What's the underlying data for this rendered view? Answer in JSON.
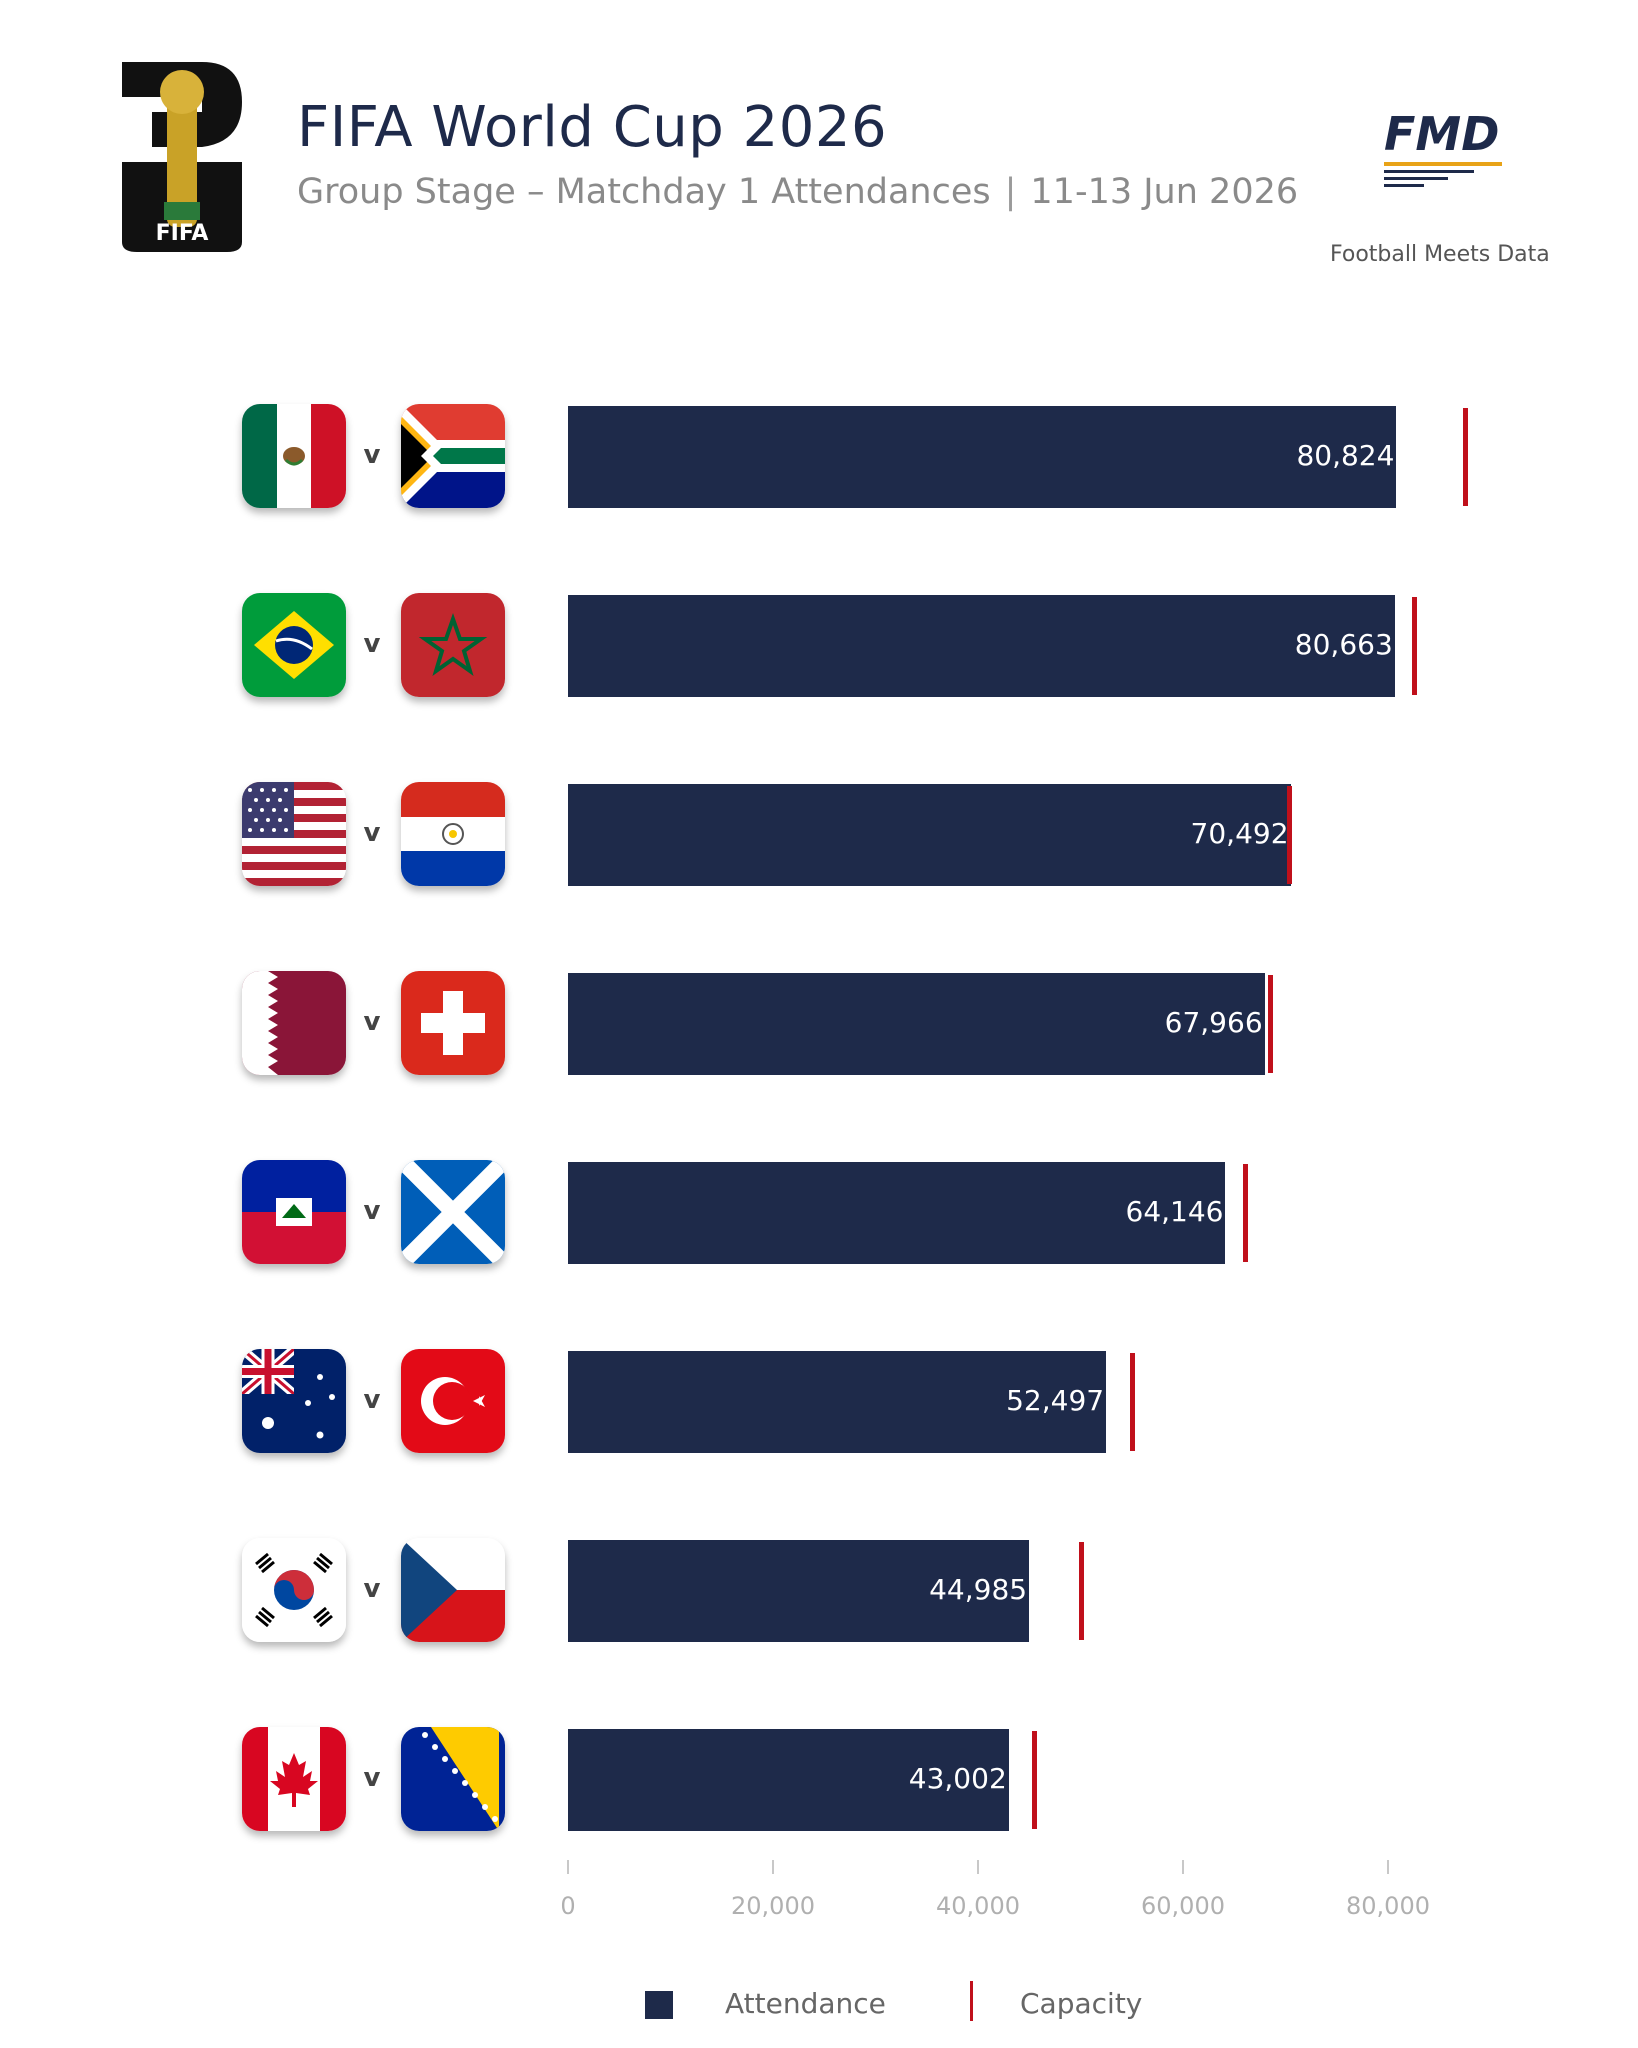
{
  "header": {
    "title": "FIFA World Cup 2026",
    "subtitle_left": "Group Stage – Matchday 1 Attendances",
    "subtitle_sep": "|",
    "subtitle_right": "11-13 Jun 2026",
    "fifa_logo_text": "FIFA",
    "fmd_logo_text": "FMD",
    "fmd_tagline": "Football Meets Data"
  },
  "colors": {
    "bar": "#1e2a4a",
    "capacity": "#c0101b",
    "title": "#1e2a4a",
    "subtitle": "#8a8a8a"
  },
  "chart_data": {
    "type": "bar",
    "orientation": "horizontal",
    "categories": [
      "Mexico v South Africa",
      "Brazil v Morocco",
      "USA v Paraguay",
      "Qatar v Switzerland",
      "Haiti v Scotland",
      "Australia v Türkiye",
      "Korea Republic v Czechia",
      "Canada v Bosnia and Herzegovina"
    ],
    "series": [
      {
        "name": "Attendance",
        "values": [
          80824,
          80663,
          70492,
          67966,
          64146,
          52497,
          44985,
          43002
        ],
        "value_labels": [
          "80,824",
          "80,663",
          "70,492",
          "67,966",
          "64,146",
          "52,497",
          "44,985",
          "43,002"
        ]
      },
      {
        "name": "Capacity",
        "values": [
          87500,
          82500,
          70300,
          68500,
          66000,
          55000,
          50000,
          45500
        ]
      }
    ],
    "xlim": [
      0,
      90000
    ],
    "xticks": [
      0,
      20000,
      40000,
      60000,
      80000
    ],
    "xtick_labels": [
      "0",
      "20,000",
      "40,000",
      "60,000",
      "80,000"
    ],
    "grid": false,
    "legend": {
      "position": "bottom-center",
      "items": [
        "Attendance",
        "Capacity"
      ]
    }
  },
  "matches": [
    {
      "home_flag": "mexico-flag",
      "away_flag": "south-africa-flag",
      "vs": "v"
    },
    {
      "home_flag": "brazil-flag",
      "away_flag": "morocco-flag",
      "vs": "v"
    },
    {
      "home_flag": "usa-flag",
      "away_flag": "paraguay-flag",
      "vs": "v"
    },
    {
      "home_flag": "qatar-flag",
      "away_flag": "switzerland-flag",
      "vs": "v"
    },
    {
      "home_flag": "haiti-flag",
      "away_flag": "scotland-flag",
      "vs": "v"
    },
    {
      "home_flag": "australia-flag",
      "away_flag": "turkey-flag",
      "vs": "v"
    },
    {
      "home_flag": "south-korea-flag",
      "away_flag": "czechia-flag",
      "vs": "v"
    },
    {
      "home_flag": "canada-flag",
      "away_flag": "bosnia-flag",
      "vs": "v"
    }
  ],
  "legend": {
    "attendance": "Attendance",
    "capacity": "Capacity"
  }
}
